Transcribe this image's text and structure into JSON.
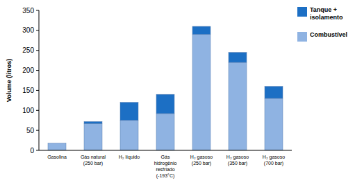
{
  "chart_data": {
    "type": "bar",
    "stacked": true,
    "y_label": "Volume (litros)",
    "categories": [
      "Gasolina",
      "Gás natural\n(250 bar)",
      "H₂ líquido",
      "Gás\nhidrogênio\nresfriado\n(-193°C)",
      "H₂ gasoso\n(250 bar)",
      "H₂ gasoso\n(350 bar)",
      "H₂ gasoso\n(700 bar)"
    ],
    "series": [
      {
        "name": "Combustível",
        "color": "#8fb3e2",
        "values": [
          18,
          67,
          75,
          92,
          290,
          220,
          130
        ]
      },
      {
        "name": "Tanque + isolamento",
        "color": "#1c6fc4",
        "values": [
          0,
          5,
          45,
          48,
          20,
          25,
          30
        ]
      }
    ],
    "ylim": [
      0,
      350
    ],
    "yticks": [
      0,
      50,
      100,
      150,
      200,
      250,
      300,
      350
    ],
    "legend": "right",
    "grid": false
  }
}
